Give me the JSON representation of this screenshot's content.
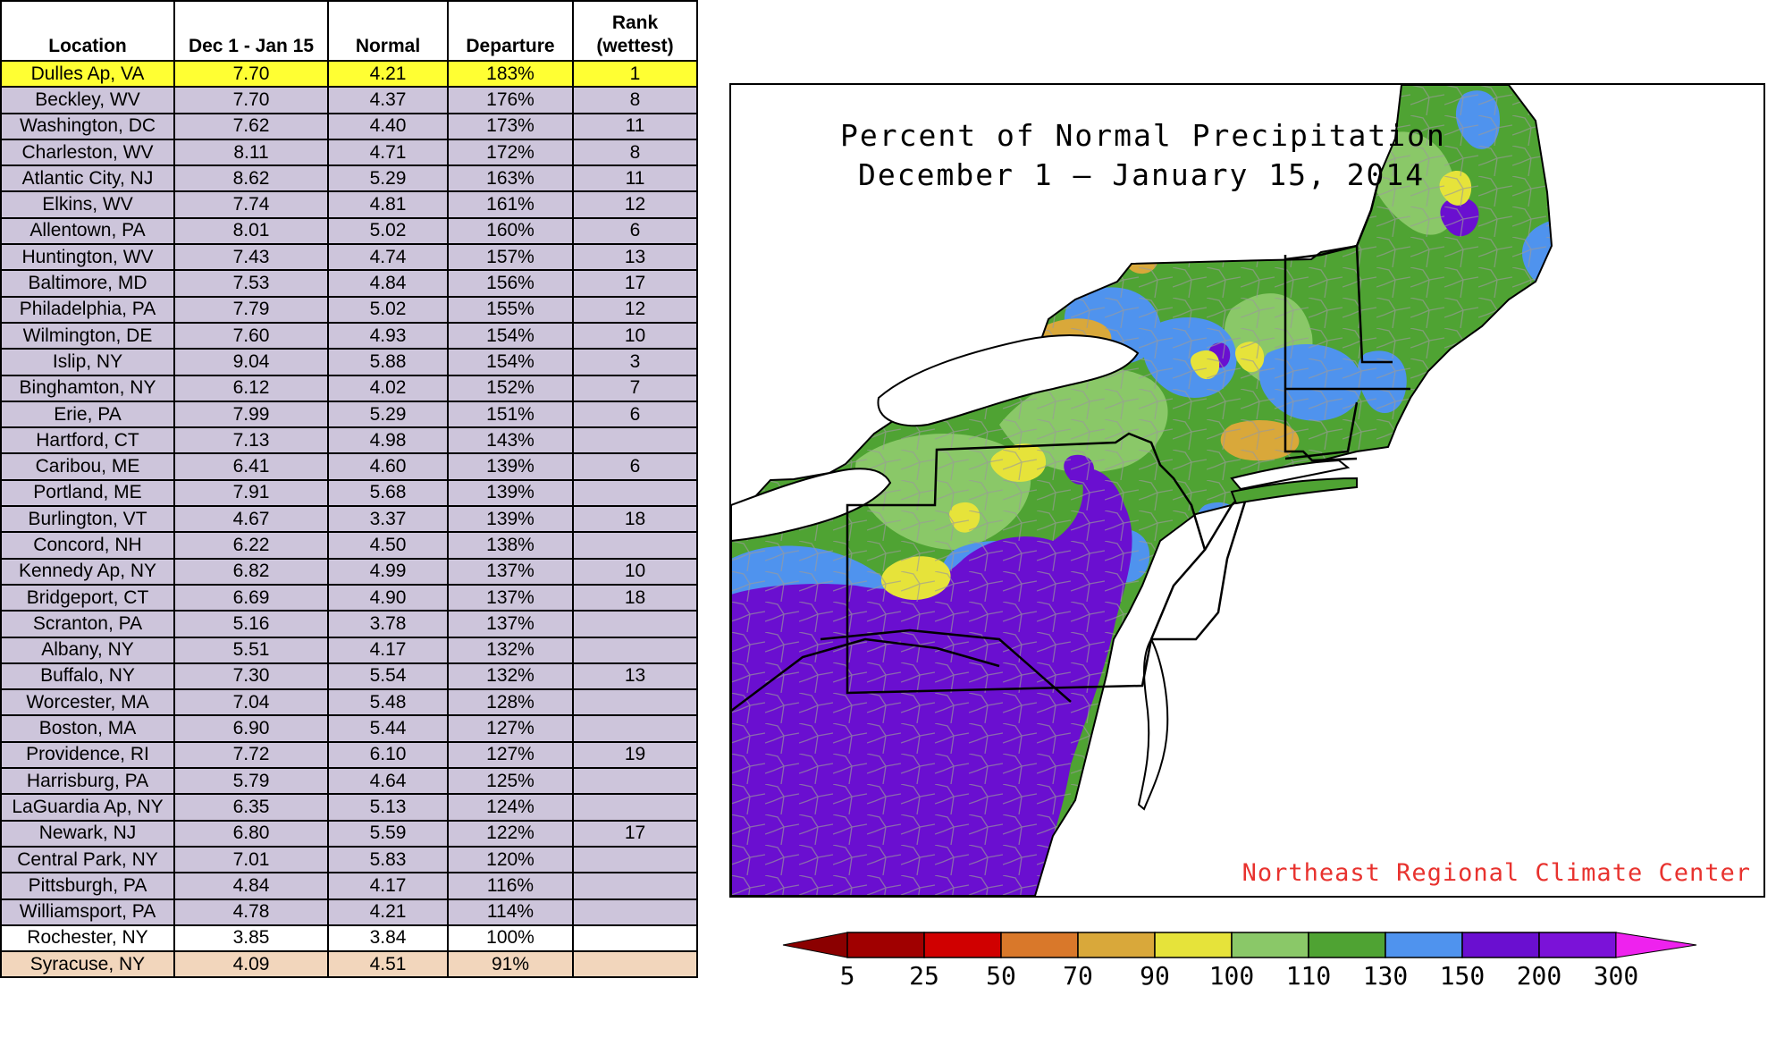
{
  "table": {
    "headers": [
      "Location",
      "Dec 1 - Jan 15",
      "Normal",
      "Departure",
      "Rank\n(wettest)"
    ],
    "header_lines": {
      "location": "Location",
      "period": "Dec 1 - Jan 15",
      "normal": "Normal",
      "departure": "Departure",
      "rank_line1": "Rank",
      "rank_line2": "(wettest)"
    },
    "rows": [
      {
        "location": "Dulles Ap, VA",
        "period": "7.70",
        "normal": "4.21",
        "departure": "183%",
        "rank": "1",
        "style": "yellow"
      },
      {
        "location": "Beckley, WV",
        "period": "7.70",
        "normal": "4.37",
        "departure": "176%",
        "rank": "8",
        "style": "default"
      },
      {
        "location": "Washington, DC",
        "period": "7.62",
        "normal": "4.40",
        "departure": "173%",
        "rank": "11",
        "style": "default"
      },
      {
        "location": "Charleston, WV",
        "period": "8.11",
        "normal": "4.71",
        "departure": "172%",
        "rank": "8",
        "style": "default"
      },
      {
        "location": "Atlantic City, NJ",
        "period": "8.62",
        "normal": "5.29",
        "departure": "163%",
        "rank": "11",
        "style": "default"
      },
      {
        "location": "Elkins, WV",
        "period": "7.74",
        "normal": "4.81",
        "departure": "161%",
        "rank": "12",
        "style": "default"
      },
      {
        "location": "Allentown, PA",
        "period": "8.01",
        "normal": "5.02",
        "departure": "160%",
        "rank": "6",
        "style": "default"
      },
      {
        "location": "Huntington, WV",
        "period": "7.43",
        "normal": "4.74",
        "departure": "157%",
        "rank": "13",
        "style": "default"
      },
      {
        "location": "Baltimore, MD",
        "period": "7.53",
        "normal": "4.84",
        "departure": "156%",
        "rank": "17",
        "style": "default"
      },
      {
        "location": "Philadelphia, PA",
        "period": "7.79",
        "normal": "5.02",
        "departure": "155%",
        "rank": "12",
        "style": "default"
      },
      {
        "location": "Wilmington, DE",
        "period": "7.60",
        "normal": "4.93",
        "departure": "154%",
        "rank": "10",
        "style": "default"
      },
      {
        "location": "Islip, NY",
        "period": "9.04",
        "normal": "5.88",
        "departure": "154%",
        "rank": "3",
        "style": "default"
      },
      {
        "location": "Binghamton, NY",
        "period": "6.12",
        "normal": "4.02",
        "departure": "152%",
        "rank": "7",
        "style": "default"
      },
      {
        "location": "Erie, PA",
        "period": "7.99",
        "normal": "5.29",
        "departure": "151%",
        "rank": "6",
        "style": "default"
      },
      {
        "location": "Hartford, CT",
        "period": "7.13",
        "normal": "4.98",
        "departure": "143%",
        "rank": "",
        "style": "default"
      },
      {
        "location": "Caribou, ME",
        "period": "6.41",
        "normal": "4.60",
        "departure": "139%",
        "rank": "6",
        "style": "default"
      },
      {
        "location": "Portland, ME",
        "period": "7.91",
        "normal": "5.68",
        "departure": "139%",
        "rank": "",
        "style": "default"
      },
      {
        "location": "Burlington, VT",
        "period": "4.67",
        "normal": "3.37",
        "departure": "139%",
        "rank": "18",
        "style": "default"
      },
      {
        "location": "Concord, NH",
        "period": "6.22",
        "normal": "4.50",
        "departure": "138%",
        "rank": "",
        "style": "default"
      },
      {
        "location": "Kennedy Ap, NY",
        "period": "6.82",
        "normal": "4.99",
        "departure": "137%",
        "rank": "10",
        "style": "default"
      },
      {
        "location": "Bridgeport, CT",
        "period": "6.69",
        "normal": "4.90",
        "departure": "137%",
        "rank": "18",
        "style": "default"
      },
      {
        "location": "Scranton, PA",
        "period": "5.16",
        "normal": "3.78",
        "departure": "137%",
        "rank": "",
        "style": "default"
      },
      {
        "location": "Albany, NY",
        "period": "5.51",
        "normal": "4.17",
        "departure": "132%",
        "rank": "",
        "style": "default"
      },
      {
        "location": "Buffalo, NY",
        "period": "7.30",
        "normal": "5.54",
        "departure": "132%",
        "rank": "13",
        "style": "default"
      },
      {
        "location": "Worcester, MA",
        "period": "7.04",
        "normal": "5.48",
        "departure": "128%",
        "rank": "",
        "style": "default"
      },
      {
        "location": "Boston, MA",
        "period": "6.90",
        "normal": "5.44",
        "departure": "127%",
        "rank": "",
        "style": "default"
      },
      {
        "location": "Providence, RI",
        "period": "7.72",
        "normal": "6.10",
        "departure": "127%",
        "rank": "19",
        "style": "default"
      },
      {
        "location": "Harrisburg, PA",
        "period": "5.79",
        "normal": "4.64",
        "departure": "125%",
        "rank": "",
        "style": "default"
      },
      {
        "location": "LaGuardia Ap, NY",
        "period": "6.35",
        "normal": "5.13",
        "departure": "124%",
        "rank": "",
        "style": "default"
      },
      {
        "location": "Newark, NJ",
        "period": "6.80",
        "normal": "5.59",
        "departure": "122%",
        "rank": "17",
        "style": "default"
      },
      {
        "location": "Central Park, NY",
        "period": "7.01",
        "normal": "5.83",
        "departure": "120%",
        "rank": "",
        "style": "default"
      },
      {
        "location": "Pittsburgh, PA",
        "period": "4.84",
        "normal": "4.17",
        "departure": "116%",
        "rank": "",
        "style": "default"
      },
      {
        "location": "Williamsport, PA",
        "period": "4.78",
        "normal": "4.21",
        "departure": "114%",
        "rank": "",
        "style": "default"
      },
      {
        "location": "Rochester, NY",
        "period": "3.85",
        "normal": "3.84",
        "departure": "100%",
        "rank": "",
        "style": "white"
      },
      {
        "location": "Syracuse, NY",
        "period": "4.09",
        "normal": "4.51",
        "departure": "91%",
        "rank": "",
        "style": "tan"
      }
    ],
    "row_colors": {
      "default": "#cdc5db",
      "yellow": "#ffff33",
      "white": "#ffffff",
      "tan": "#f2d6bc"
    }
  },
  "map": {
    "title_line1": "Percent of Normal Precipitation",
    "title_line2": "December 1 — January 15, 2014",
    "credit": "Northeast Regional Climate Center",
    "colors": {
      "purple": "#6a0fd0",
      "blue": "#4f93ee",
      "green": "#4fa333",
      "light_green": "#8ac868",
      "yellow": "#e6e33a",
      "orange": "#d9a83a",
      "water": "#ffffff",
      "county_line": "#999999",
      "state_line": "#000000"
    }
  },
  "legend": {
    "labels": [
      "5",
      "25",
      "50",
      "70",
      "90",
      "100",
      "110",
      "130",
      "150",
      "200",
      "300"
    ],
    "bins": [
      {
        "color": "#a00000"
      },
      {
        "color": "#d00000"
      },
      {
        "color": "#d9782a"
      },
      {
        "color": "#d9a83a"
      },
      {
        "color": "#e6e33a"
      },
      {
        "color": "#8ac868"
      },
      {
        "color": "#4fa333"
      },
      {
        "color": "#4f93ee"
      },
      {
        "color": "#6a0fd0"
      },
      {
        "color": "#7b12d8"
      }
    ],
    "low_arrow_color": "#8b0000",
    "high_arrow_color": "#ee22ee"
  }
}
